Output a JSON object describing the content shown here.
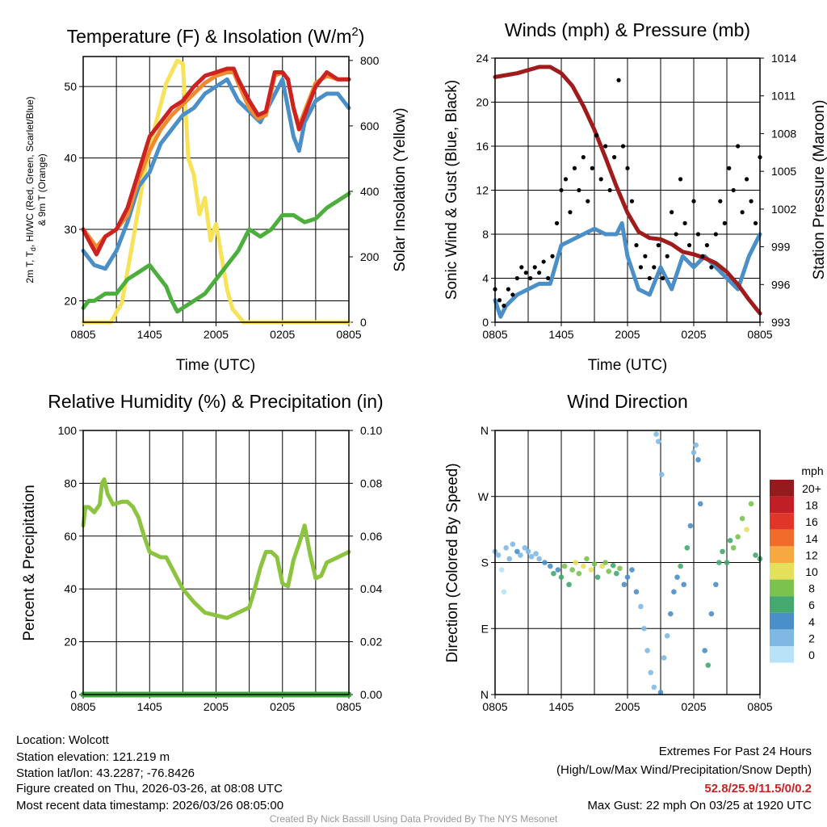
{
  "chart_data": [
    {
      "type": "line",
      "title_pre": "Temperature (F) & Insolation (W/m",
      "title_sup": "2",
      "title_post": ")",
      "xlabel": "Time (UTC)",
      "ylabel_line1_a": "2m T, T",
      "ylabel_line1_sub": "d",
      "ylabel_line1_b": ", HI/WC (Red, Green, Scarlet/Blue)",
      "ylabel_line2": "& 9m T (Orange)",
      "y2label": "Solar Insolation (Yellow)",
      "xticks": [
        "0805",
        "1405",
        "2005",
        "0205",
        "0805"
      ],
      "yticks": [
        20,
        30,
        40,
        50
      ],
      "y2ticks": [
        0,
        200,
        400,
        600,
        800
      ],
      "xlim_hours": [
        0,
        24
      ],
      "ylim": [
        17,
        54.2
      ],
      "y2lim": [
        0,
        812
      ],
      "series": [
        {
          "name": "Solar Insolation",
          "axis": "y2",
          "color": "#f7e25a",
          "x": [
            0,
            2.5,
            3.5,
            4.5,
            5.5,
            6.5,
            7.5,
            8.5,
            9,
            9.5,
            10,
            10.5,
            11,
            11.5,
            12,
            12.5,
            13,
            13.5,
            14.5,
            24
          ],
          "y": [
            0,
            0,
            60,
            250,
            450,
            600,
            730,
            800,
            790,
            500,
            450,
            330,
            380,
            250,
            300,
            200,
            100,
            40,
            0,
            0
          ]
        },
        {
          "name": "HI/WC (Green)",
          "axis": "y",
          "color": "#4cae3c",
          "x": [
            0,
            0.5,
            1,
            2,
            3,
            4,
            5,
            6,
            7,
            7.5,
            8,
            8.5,
            9,
            10,
            11,
            12,
            13,
            14,
            15,
            16,
            17,
            18,
            19,
            20,
            21,
            22,
            23,
            24
          ],
          "y": [
            19,
            20,
            20,
            21,
            21,
            23,
            24,
            25,
            23,
            22,
            20,
            18.5,
            19,
            20,
            21,
            23,
            25,
            27,
            30,
            29,
            30,
            32,
            32,
            31,
            31.5,
            33,
            34,
            35
          ]
        },
        {
          "name": "Dewpoint (Blue)",
          "axis": "y",
          "color": "#4a8fc8",
          "x": [
            0,
            1,
            2,
            3,
            4,
            5,
            6,
            7,
            8,
            9,
            10,
            11,
            12,
            13,
            14,
            15,
            16,
            17,
            18,
            18.5,
            19,
            19.5,
            20,
            21,
            22,
            23,
            24
          ],
          "y": [
            27,
            25,
            24.5,
            27,
            31,
            36,
            38,
            42,
            44,
            46,
            47,
            49,
            50,
            51,
            48,
            46.5,
            45,
            48,
            51,
            47,
            43,
            41,
            45,
            48,
            49,
            49,
            47
          ]
        },
        {
          "name": "9m T (Orange)",
          "axis": "y",
          "color": "#f08a30",
          "x": [
            0,
            0.5,
            1.2,
            2,
            3,
            4,
            5,
            6,
            7,
            8,
            9,
            10,
            11,
            12,
            13,
            13.6,
            14,
            15,
            15.8,
            16.5,
            17.3,
            18,
            18.5,
            19,
            19.5,
            20,
            21,
            22,
            23,
            24
          ],
          "y": [
            30,
            29,
            27.5,
            29,
            30,
            32,
            37,
            41,
            44,
            46,
            47.5,
            49,
            50.5,
            51.5,
            52,
            52,
            50.5,
            47,
            45.5,
            46,
            51.5,
            52,
            51,
            47,
            44.5,
            46.5,
            50.5,
            51.5,
            51,
            51
          ]
        },
        {
          "name": "2m T (Red)",
          "axis": "y",
          "color": "#cc2222",
          "x": [
            0,
            0.5,
            1.2,
            2,
            3,
            4,
            5,
            6,
            7,
            8,
            9,
            10,
            11,
            12,
            13,
            13.6,
            14,
            15,
            15.8,
            16.5,
            17.3,
            18,
            18.5,
            19,
            19.5,
            20,
            21,
            22,
            23,
            24
          ],
          "y": [
            30,
            28.5,
            26.5,
            29,
            30,
            33,
            38,
            43,
            45,
            47,
            48,
            50,
            51.5,
            52,
            52.5,
            52.5,
            51,
            48,
            46,
            46.5,
            52,
            52,
            51,
            47,
            44,
            46,
            50,
            52,
            51,
            51
          ]
        }
      ]
    },
    {
      "type": "line",
      "title": "Winds (mph) & Pressure (mb)",
      "xlabel": "Time (UTC)",
      "ylabel": "Sonic Wind & Gust (Blue, Black)",
      "y2label": "Station Pressure (Maroon)",
      "xticks": [
        "0805",
        "1405",
        "2005",
        "0205",
        "0805"
      ],
      "yticks": [
        0,
        4,
        8,
        12,
        16,
        20,
        24
      ],
      "y2ticks": [
        993,
        996,
        999,
        1002,
        1005,
        1008,
        1011,
        1014
      ],
      "xlim_hours": [
        0,
        24
      ],
      "ylim": [
        0,
        24
      ],
      "y2lim": [
        993,
        1014
      ],
      "series": [
        {
          "name": "Sonic Wind",
          "axis": "y",
          "color": "#4a8fc8",
          "x": [
            0,
            0.5,
            1,
            2,
            3,
            4,
            5,
            6,
            7,
            8,
            9,
            10,
            11,
            11.5,
            12,
            13,
            14,
            15,
            16,
            17,
            18,
            19,
            20,
            21,
            22,
            23,
            24
          ],
          "y": [
            2,
            0.5,
            1.5,
            2.5,
            3,
            3.5,
            3.5,
            7,
            7.5,
            8,
            8.5,
            8,
            8,
            9,
            6,
            3,
            2.5,
            5,
            3,
            6,
            5,
            6,
            5,
            4,
            3,
            6,
            8
          ]
        },
        {
          "name": "Station Pressure",
          "axis": "y2",
          "color": "#a01c1c",
          "x": [
            0,
            2,
            4,
            5,
            6,
            7,
            8,
            9,
            10,
            11,
            12,
            13,
            14,
            15,
            16,
            17,
            18,
            19,
            20,
            21,
            22,
            23,
            24
          ],
          "y": [
            1012.5,
            1012.8,
            1013.3,
            1013.3,
            1012.8,
            1011.8,
            1010.2,
            1008.3,
            1006.1,
            1003.8,
            1001.7,
            1000.2,
            999.7,
            999.6,
            999.2,
            998.6,
            998.4,
            998.1,
            997.7,
            997,
            996,
            994.8,
            993.7
          ]
        },
        {
          "name": "Gust",
          "axis": "y",
          "color": "#000000",
          "kind": "scatter",
          "x_step_hours": 0.4,
          "y": [
            3,
            2,
            1.5,
            3,
            2.5,
            4,
            5,
            4.5,
            4,
            5,
            4.5,
            5.5,
            4,
            6,
            9,
            12,
            13,
            10,
            14,
            12,
            15,
            11,
            14,
            17,
            13,
            16,
            12,
            15,
            22,
            16,
            14,
            11,
            7,
            5,
            6,
            4,
            5,
            7,
            4,
            6,
            10,
            8,
            13,
            9,
            7,
            11,
            8,
            6,
            7,
            5,
            8,
            11,
            9,
            14,
            12,
            16,
            10,
            13,
            11,
            9,
            15
          ]
        }
      ]
    },
    {
      "type": "line",
      "title": "Relative Humidity (%) & Precipitation (in)",
      "ylabel": "Percent & Precipitation",
      "xticks": [
        "0805",
        "1405",
        "2005",
        "0205",
        "0805"
      ],
      "yticks": [
        0,
        20,
        40,
        60,
        80,
        100
      ],
      "y2ticks": [
        "0.00",
        "0.02",
        "0.04",
        "0.06",
        "0.08",
        "0.10"
      ],
      "xlim_hours": [
        0,
        24
      ],
      "ylim": [
        0,
        100
      ],
      "y2lim": [
        0,
        0.1
      ],
      "series": [
        {
          "name": "Relative Humidity",
          "axis": "y",
          "color": "#8cc43f",
          "x": [
            0,
            0.2,
            0.5,
            1,
            1.5,
            1.7,
            1.9,
            2.2,
            2.7,
            3.5,
            4,
            4.5,
            5,
            5.5,
            6,
            7,
            7.5,
            8,
            8.5,
            9,
            10,
            11,
            12,
            13,
            14,
            15,
            15.5,
            16,
            16.5,
            17,
            17.5,
            18,
            18.5,
            19,
            19.5,
            20,
            20.5,
            21,
            21.5,
            22,
            23,
            24
          ],
          "y": [
            64,
            71,
            71,
            69,
            72,
            80,
            81.5,
            76,
            72,
            73,
            73,
            71,
            67,
            60,
            54,
            52,
            52,
            48,
            44,
            40,
            35,
            31,
            30,
            29,
            31,
            33,
            40,
            48,
            54,
            54,
            52,
            42,
            41,
            51,
            57,
            64,
            53,
            44,
            45,
            50,
            52,
            54
          ]
        },
        {
          "name": "Precipitation",
          "axis": "y2",
          "color": "#3aa93a",
          "x": [
            0,
            24
          ],
          "y": [
            0,
            0
          ]
        }
      ]
    },
    {
      "type": "scatter",
      "title": "Wind Direction",
      "ylabel": "Direction (Colored By Speed)",
      "xticks": [
        "0805",
        "1405",
        "2005",
        "0205",
        "0805"
      ],
      "yticks": [
        "N",
        "E",
        "S",
        "W",
        "N"
      ],
      "xlim_hours": [
        0,
        24
      ],
      "ylim_degrees": [
        0,
        360
      ],
      "legend": {
        "title": "mph",
        "labels": [
          "20+",
          "18",
          "16",
          "14",
          "12",
          "10",
          "8",
          "6",
          "4",
          "2",
          "0"
        ],
        "colors": [
          "#951a1d",
          "#c11f26",
          "#e0362a",
          "#f26b2b",
          "#f7a841",
          "#e5e05a",
          "#7bc24f",
          "#45a86e",
          "#4a8fc8",
          "#7fb9e3",
          "#b8e2f8"
        ]
      },
      "points": [
        [
          0,
          195,
          3
        ],
        [
          0.3,
          190,
          2
        ],
        [
          0.6,
          170,
          1
        ],
        [
          0.8,
          140,
          0.5
        ],
        [
          1,
          200,
          3
        ],
        [
          1.3,
          185,
          2
        ],
        [
          1.6,
          205,
          3
        ],
        [
          2,
          195,
          4
        ],
        [
          2.3,
          190,
          3
        ],
        [
          2.7,
          200,
          2
        ],
        [
          3,
          195,
          3
        ],
        [
          3.3,
          188,
          3
        ],
        [
          3.7,
          192,
          2
        ],
        [
          4,
          185,
          3
        ],
        [
          4.5,
          180,
          4
        ],
        [
          5,
          175,
          4
        ],
        [
          5.3,
          165,
          6
        ],
        [
          5.7,
          170,
          5
        ],
        [
          6,
          160,
          7
        ],
        [
          6.3,
          175,
          8
        ],
        [
          6.7,
          150,
          6
        ],
        [
          7,
          170,
          9
        ],
        [
          7.3,
          180,
          10
        ],
        [
          7.6,
          165,
          9
        ],
        [
          8,
          175,
          10
        ],
        [
          8.3,
          185,
          8
        ],
        [
          8.7,
          170,
          11
        ],
        [
          9,
          178,
          9
        ],
        [
          9.3,
          160,
          7
        ],
        [
          9.7,
          175,
          10
        ],
        [
          10,
          180,
          8
        ],
        [
          10.3,
          168,
          9
        ],
        [
          10.7,
          176,
          7
        ],
        [
          11,
          165,
          6
        ],
        [
          11.3,
          172,
          8
        ],
        [
          11.7,
          150,
          5
        ],
        [
          12,
          160,
          4
        ],
        [
          12.4,
          170,
          5
        ],
        [
          12.8,
          140,
          4
        ],
        [
          13.2,
          120,
          3
        ],
        [
          13.5,
          90,
          3
        ],
        [
          13.8,
          60,
          3
        ],
        [
          14.1,
          30,
          2
        ],
        [
          14.4,
          10,
          3
        ],
        [
          14.6,
          355,
          2
        ],
        [
          14.8,
          345,
          3
        ],
        [
          15.0,
          3,
          4
        ],
        [
          15.1,
          300,
          2
        ],
        [
          15.3,
          50,
          2
        ],
        [
          15.6,
          80,
          3
        ],
        [
          15.9,
          110,
          4
        ],
        [
          16.2,
          140,
          5
        ],
        [
          16.5,
          160,
          4
        ],
        [
          16.8,
          175,
          6
        ],
        [
          17.1,
          150,
          5
        ],
        [
          17.4,
          200,
          6
        ],
        [
          17.7,
          230,
          5
        ],
        [
          18,
          330,
          3
        ],
        [
          18.2,
          340,
          3
        ],
        [
          18.4,
          320,
          4
        ],
        [
          18.6,
          260,
          4
        ],
        [
          19,
          60,
          4
        ],
        [
          19.3,
          40,
          6
        ],
        [
          19.6,
          110,
          4
        ],
        [
          20,
          150,
          5
        ],
        [
          20.3,
          180,
          6
        ],
        [
          20.6,
          195,
          7
        ],
        [
          21,
          180,
          6
        ],
        [
          21.3,
          210,
          7
        ],
        [
          21.6,
          200,
          8
        ],
        [
          22,
          215,
          8
        ],
        [
          22.4,
          240,
          9
        ],
        [
          22.8,
          225,
          10
        ],
        [
          23.2,
          260,
          8
        ],
        [
          23.6,
          190,
          7
        ],
        [
          24,
          185,
          6
        ]
      ]
    }
  ],
  "footer": {
    "location": "Location: Wolcott",
    "elevation": "Station elevation: 121.219 m",
    "latlon": "Station lat/lon: 43.2287; -76.8426",
    "created": "Figure created on Thu, 2026-03-26, at 08:08 UTC",
    "recent": "Most recent data timestamp: 2026/03/26 08:05:00",
    "extremes_title": "Extremes For Past 24 Hours",
    "extremes_legend": "(High/Low/Max Wind/Precipitation/Snow Depth)",
    "extremes_values": "52.8/25.9/11.5/0/0.2",
    "max_gust": "Max Gust: 22 mph On 03/25 at 1920 UTC",
    "credit": "Created By Nick Bassill Using Data Provided By The NYS Mesonet",
    "extremes_color": "#cc2222"
  }
}
